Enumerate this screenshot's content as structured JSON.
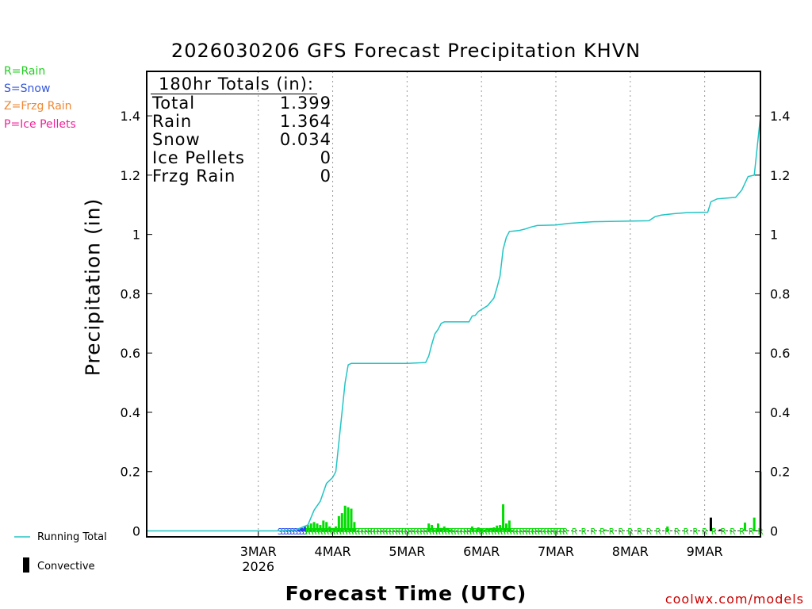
{
  "title": "2026030206 GFS Forecast Precipitation KHVN",
  "legend_top": [
    {
      "label": "R=Rain",
      "color": "#22cc22"
    },
    {
      "label": "S=Snow",
      "color": "#3355dd"
    },
    {
      "label": "Z=Frzg Rain",
      "color": "#ee8833"
    },
    {
      "label": "P=Ice Pellets",
      "color": "#ee2299"
    }
  ],
  "totals": {
    "header": "180hr Totals (in):",
    "rows": [
      {
        "label": "Total",
        "value": "1.399"
      },
      {
        "label": "Rain",
        "value": "1.364"
      },
      {
        "label": "Snow",
        "value": "0.034"
      },
      {
        "label": "Ice Pellets",
        "value": "0"
      },
      {
        "label": "Frzg Rain",
        "value": "0"
      }
    ]
  },
  "bottom_legend": {
    "running_total": "Running Total",
    "convective": "Convective"
  },
  "credit": "coolwx.com/models",
  "colors": {
    "running_total": "#22c4c4",
    "rain": "#00dd00",
    "snow": "#2244ee",
    "convective": "#000000",
    "grid": "#999999"
  },
  "chart_data": {
    "type": "bar+line",
    "title": "2026030206 GFS Forecast Precipitation KHVN",
    "xlabel": "Forecast Time (UTC)",
    "ylabel": "Precipitation (in)",
    "ylim": [
      -0.02,
      1.55
    ],
    "yticks": [
      0,
      0.2,
      0.4,
      0.6,
      0.8,
      1,
      1.2,
      1.4
    ],
    "x_unit": "forecast hour",
    "xlim": [
      -18,
      180
    ],
    "xticks": [
      {
        "hour": 18,
        "label": "3MAR",
        "sublabel": "2026"
      },
      {
        "hour": 42,
        "label": "4MAR"
      },
      {
        "hour": 66,
        "label": "5MAR"
      },
      {
        "hour": 90,
        "label": "6MAR"
      },
      {
        "hour": 114,
        "label": "7MAR"
      },
      {
        "hour": 138,
        "label": "8MAR"
      },
      {
        "hour": 162,
        "label": "9MAR"
      }
    ],
    "running_total": [
      [
        -18,
        0
      ],
      [
        24,
        0
      ],
      [
        30,
        0.003
      ],
      [
        34,
        0.02
      ],
      [
        36,
        0.07
      ],
      [
        38,
        0.1
      ],
      [
        40,
        0.16
      ],
      [
        42,
        0.18
      ],
      [
        43,
        0.2
      ],
      [
        44,
        0.3
      ],
      [
        45,
        0.4
      ],
      [
        46,
        0.5
      ],
      [
        47,
        0.56
      ],
      [
        48,
        0.565
      ],
      [
        66,
        0.565
      ],
      [
        72,
        0.568
      ],
      [
        73,
        0.59
      ],
      [
        74,
        0.63
      ],
      [
        75,
        0.665
      ],
      [
        76,
        0.68
      ],
      [
        77,
        0.7
      ],
      [
        78,
        0.705
      ],
      [
        86,
        0.705
      ],
      [
        87,
        0.725
      ],
      [
        88,
        0.727
      ],
      [
        89,
        0.74
      ],
      [
        92,
        0.76
      ],
      [
        94,
        0.785
      ],
      [
        95,
        0.82
      ],
      [
        96,
        0.86
      ],
      [
        97,
        0.95
      ],
      [
        98,
        0.99
      ],
      [
        99,
        1.01
      ],
      [
        102,
        1.013
      ],
      [
        104,
        1.018
      ],
      [
        106,
        1.025
      ],
      [
        108,
        1.03
      ],
      [
        114,
        1.032
      ],
      [
        118,
        1.037
      ],
      [
        126,
        1.043
      ],
      [
        144,
        1.046
      ],
      [
        146,
        1.06
      ],
      [
        148,
        1.065
      ],
      [
        152,
        1.07
      ],
      [
        156,
        1.073
      ],
      [
        163,
        1.075
      ],
      [
        164,
        1.11
      ],
      [
        166,
        1.12
      ],
      [
        172,
        1.125
      ],
      [
        174,
        1.15
      ],
      [
        176,
        1.195
      ],
      [
        178,
        1.2
      ],
      [
        180,
        1.399
      ]
    ],
    "bars_6hr": [
      {
        "hour": 31,
        "value": 0.005,
        "type": "snow"
      },
      {
        "hour": 32,
        "value": 0.01,
        "type": "snow"
      },
      {
        "hour": 33,
        "value": 0.015,
        "type": "snow"
      },
      {
        "hour": 34,
        "value": 0.02,
        "type": "rain"
      },
      {
        "hour": 35,
        "value": 0.025,
        "type": "rain"
      },
      {
        "hour": 36,
        "value": 0.03,
        "type": "rain"
      },
      {
        "hour": 37,
        "value": 0.025,
        "type": "rain"
      },
      {
        "hour": 38,
        "value": 0.02,
        "type": "rain"
      },
      {
        "hour": 39,
        "value": 0.035,
        "type": "rain"
      },
      {
        "hour": 40,
        "value": 0.03,
        "type": "rain"
      },
      {
        "hour": 41,
        "value": 0.015,
        "type": "rain"
      },
      {
        "hour": 42,
        "value": 0.01,
        "type": "rain"
      },
      {
        "hour": 43,
        "value": 0.015,
        "type": "rain"
      },
      {
        "hour": 44,
        "value": 0.05,
        "type": "rain"
      },
      {
        "hour": 45,
        "value": 0.06,
        "type": "rain"
      },
      {
        "hour": 46,
        "value": 0.085,
        "type": "rain"
      },
      {
        "hour": 47,
        "value": 0.08,
        "type": "rain"
      },
      {
        "hour": 48,
        "value": 0.075,
        "type": "rain"
      },
      {
        "hour": 49,
        "value": 0.03,
        "type": "rain"
      },
      {
        "hour": 73,
        "value": 0.025,
        "type": "rain"
      },
      {
        "hour": 74,
        "value": 0.02,
        "type": "rain"
      },
      {
        "hour": 75,
        "value": 0.005,
        "type": "rain"
      },
      {
        "hour": 76,
        "value": 0.025,
        "type": "rain"
      },
      {
        "hour": 77,
        "value": 0.01,
        "type": "rain"
      },
      {
        "hour": 78,
        "value": 0.015,
        "type": "rain"
      },
      {
        "hour": 79,
        "value": 0.01,
        "type": "rain"
      },
      {
        "hour": 80,
        "value": 0.005,
        "type": "rain"
      },
      {
        "hour": 87,
        "value": 0.015,
        "type": "rain"
      },
      {
        "hour": 88,
        "value": 0.005,
        "type": "rain"
      },
      {
        "hour": 89,
        "value": 0.012,
        "type": "rain"
      },
      {
        "hour": 90,
        "value": 0.008,
        "type": "rain"
      },
      {
        "hour": 91,
        "value": 0.005,
        "type": "rain"
      },
      {
        "hour": 92,
        "value": 0.008,
        "type": "rain"
      },
      {
        "hour": 93,
        "value": 0.01,
        "type": "rain"
      },
      {
        "hour": 94,
        "value": 0.012,
        "type": "rain"
      },
      {
        "hour": 95,
        "value": 0.018,
        "type": "rain"
      },
      {
        "hour": 96,
        "value": 0.02,
        "type": "rain"
      },
      {
        "hour": 97,
        "value": 0.09,
        "type": "rain"
      },
      {
        "hour": 98,
        "value": 0.025,
        "type": "rain"
      },
      {
        "hour": 99,
        "value": 0.035,
        "type": "rain"
      },
      {
        "hour": 100,
        "value": 0.003,
        "type": "rain"
      },
      {
        "hour": 130,
        "value": 0.005,
        "type": "rain"
      },
      {
        "hour": 150,
        "value": 0.015,
        "type": "rain"
      },
      {
        "hour": 164,
        "value": 0.045,
        "type": "convective"
      },
      {
        "hour": 167,
        "value": 0.005,
        "type": "convective"
      },
      {
        "hour": 175,
        "value": 0.028,
        "type": "rain"
      },
      {
        "hour": 178,
        "value": 0.045,
        "type": "rain"
      },
      {
        "hour": 180,
        "value": 0.2,
        "type": "rain"
      }
    ],
    "ptype_markers": [
      {
        "hour": 25,
        "code": "S"
      },
      {
        "hour": 26,
        "code": "S"
      },
      {
        "hour": 27,
        "code": "S"
      },
      {
        "hour": 28,
        "code": "S"
      },
      {
        "hour": 29,
        "code": "S"
      },
      {
        "hour": 30,
        "code": "S"
      },
      {
        "hour": 31,
        "code": "S"
      },
      {
        "hour": 32,
        "code": "S"
      },
      {
        "hour": 33,
        "code": "S"
      },
      {
        "hour": 34,
        "code": "R"
      },
      {
        "hour": 35,
        "code": "R"
      },
      {
        "hour": 36,
        "code": "R"
      },
      {
        "hour": 37,
        "code": "R"
      },
      {
        "hour": 38,
        "code": "R"
      },
      {
        "hour": 39,
        "code": "R"
      },
      {
        "hour": 40,
        "code": "R"
      },
      {
        "hour": 41,
        "code": "R"
      },
      {
        "hour": 42,
        "code": "R"
      },
      {
        "hour": 43,
        "code": "R"
      },
      {
        "hour": 44,
        "code": "R"
      },
      {
        "hour": 45,
        "code": "R"
      },
      {
        "hour": 46,
        "code": "R"
      },
      {
        "hour": 47,
        "code": "R"
      },
      {
        "hour": 48,
        "code": "R"
      },
      {
        "hour": 49,
        "code": "R"
      },
      {
        "hour": 50,
        "code": "R"
      },
      {
        "hour": 51,
        "code": "R"
      },
      {
        "hour": 52,
        "code": "R"
      },
      {
        "hour": 53,
        "code": "R"
      },
      {
        "hour": 54,
        "code": "R"
      },
      {
        "hour": 55,
        "code": "R"
      },
      {
        "hour": 56,
        "code": "R"
      },
      {
        "hour": 57,
        "code": "R"
      },
      {
        "hour": 58,
        "code": "R"
      },
      {
        "hour": 59,
        "code": "R"
      },
      {
        "hour": 60,
        "code": "R"
      },
      {
        "hour": 61,
        "code": "R"
      },
      {
        "hour": 62,
        "code": "R"
      },
      {
        "hour": 63,
        "code": "R"
      },
      {
        "hour": 64,
        "code": "R"
      },
      {
        "hour": 65,
        "code": "R"
      },
      {
        "hour": 66,
        "code": "R"
      },
      {
        "hour": 67,
        "code": "R"
      },
      {
        "hour": 68,
        "code": "R"
      },
      {
        "hour": 69,
        "code": "R"
      },
      {
        "hour": 70,
        "code": "R"
      },
      {
        "hour": 71,
        "code": "R"
      },
      {
        "hour": 72,
        "code": "R"
      },
      {
        "hour": 73,
        "code": "R"
      },
      {
        "hour": 74,
        "code": "R"
      },
      {
        "hour": 75,
        "code": "R"
      },
      {
        "hour": 76,
        "code": "R"
      },
      {
        "hour": 77,
        "code": "R"
      },
      {
        "hour": 78,
        "code": "R"
      },
      {
        "hour": 79,
        "code": "R"
      },
      {
        "hour": 80,
        "code": "R"
      },
      {
        "hour": 81,
        "code": "R"
      },
      {
        "hour": 82,
        "code": "R"
      },
      {
        "hour": 83,
        "code": "R"
      },
      {
        "hour": 84,
        "code": "R"
      },
      {
        "hour": 85,
        "code": "R"
      },
      {
        "hour": 86,
        "code": "R"
      },
      {
        "hour": 87,
        "code": "R"
      },
      {
        "hour": 88,
        "code": "R"
      },
      {
        "hour": 89,
        "code": "R"
      },
      {
        "hour": 90,
        "code": "R"
      },
      {
        "hour": 91,
        "code": "R"
      },
      {
        "hour": 92,
        "code": "R"
      },
      {
        "hour": 93,
        "code": "R"
      },
      {
        "hour": 94,
        "code": "R"
      },
      {
        "hour": 95,
        "code": "R"
      },
      {
        "hour": 96,
        "code": "R"
      },
      {
        "hour": 97,
        "code": "R"
      },
      {
        "hour": 98,
        "code": "R"
      },
      {
        "hour": 99,
        "code": "R"
      },
      {
        "hour": 100,
        "code": "R"
      },
      {
        "hour": 101,
        "code": "R"
      },
      {
        "hour": 102,
        "code": "R"
      },
      {
        "hour": 103,
        "code": "R"
      },
      {
        "hour": 104,
        "code": "R"
      },
      {
        "hour": 105,
        "code": "R"
      },
      {
        "hour": 106,
        "code": "R"
      },
      {
        "hour": 107,
        "code": "R"
      },
      {
        "hour": 108,
        "code": "R"
      },
      {
        "hour": 109,
        "code": "R"
      },
      {
        "hour": 110,
        "code": "R"
      },
      {
        "hour": 111,
        "code": "R"
      },
      {
        "hour": 112,
        "code": "R"
      },
      {
        "hour": 113,
        "code": "R"
      },
      {
        "hour": 114,
        "code": "R"
      },
      {
        "hour": 115,
        "code": "R"
      },
      {
        "hour": 116,
        "code": "R"
      },
      {
        "hour": 117,
        "code": "R"
      },
      {
        "hour": 120,
        "code": "R"
      },
      {
        "hour": 123,
        "code": "R"
      },
      {
        "hour": 126,
        "code": "R"
      },
      {
        "hour": 129,
        "code": "R"
      },
      {
        "hour": 132,
        "code": "R"
      },
      {
        "hour": 135,
        "code": "R"
      },
      {
        "hour": 138,
        "code": "R"
      },
      {
        "hour": 141,
        "code": "R"
      },
      {
        "hour": 144,
        "code": "R"
      },
      {
        "hour": 147,
        "code": "R"
      },
      {
        "hour": 150,
        "code": "R"
      },
      {
        "hour": 153,
        "code": "R"
      },
      {
        "hour": 156,
        "code": "R"
      },
      {
        "hour": 159,
        "code": "R"
      },
      {
        "hour": 162,
        "code": "R"
      },
      {
        "hour": 165,
        "code": "R"
      },
      {
        "hour": 168,
        "code": "R"
      },
      {
        "hour": 171,
        "code": "R"
      },
      {
        "hour": 174,
        "code": "R"
      },
      {
        "hour": 177,
        "code": "R"
      },
      {
        "hour": 180,
        "code": "R"
      }
    ]
  }
}
